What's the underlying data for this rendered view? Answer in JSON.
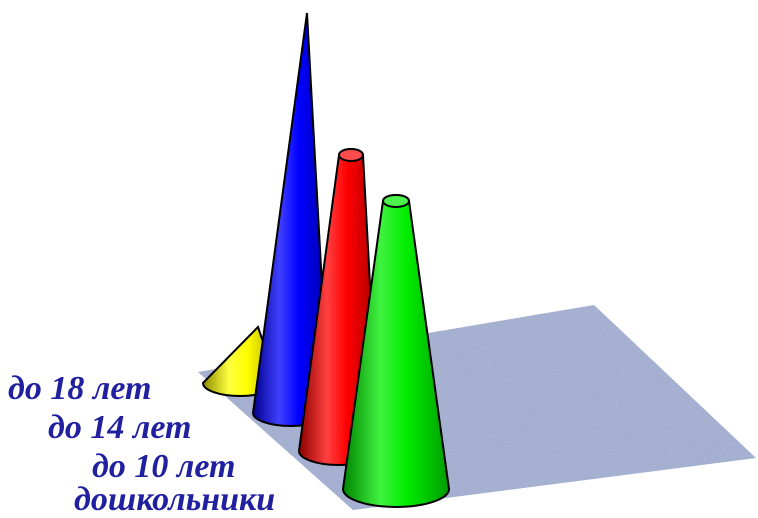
{
  "chart_data": {
    "type": "bar",
    "style": "3d-cone",
    "categories": [
      "до 18 лет",
      "до 14 лет",
      "до 10 лет",
      "дошкольники"
    ],
    "series": [
      {
        "values": [
          14,
          100,
          74,
          72
        ],
        "colors": [
          "#ffff00",
          "#0000ff",
          "#ff0000",
          "#00ee00"
        ]
      }
    ],
    "label_color": "#2020a0",
    "floor_color": "#9aa6c8",
    "grid": false,
    "legend": false
  }
}
